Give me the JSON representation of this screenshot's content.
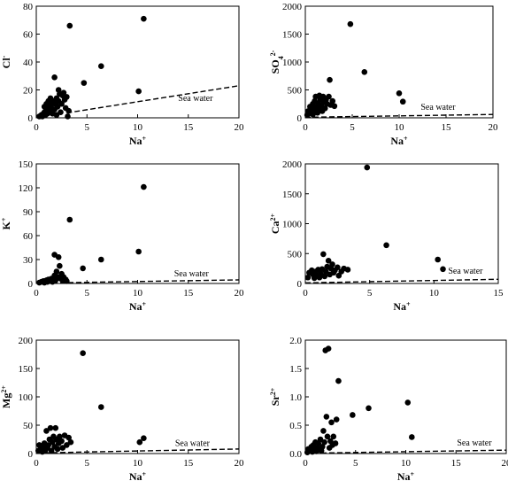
{
  "chart_data": [
    {
      "type": "scatter",
      "xlabel": "Na",
      "xlabel_sup": "+",
      "ylabel": "Cl",
      "ylabel_sup": "-",
      "xlim": [
        0,
        20
      ],
      "ylim": [
        0,
        80
      ],
      "xticks": [
        0,
        5,
        10,
        15,
        20
      ],
      "yticks": [
        0,
        20,
        40,
        60,
        80
      ],
      "ytick_labels": [
        "0",
        "20",
        "40",
        "60",
        "80"
      ],
      "annotation": "Sea water",
      "annotation_at": [
        14,
        12
      ],
      "seawater_line": [
        [
          3,
          3.5
        ],
        [
          20,
          23
        ]
      ],
      "points": [
        [
          0.3,
          1
        ],
        [
          0.5,
          2
        ],
        [
          0.6,
          1
        ],
        [
          0.7,
          3
        ],
        [
          0.8,
          4
        ],
        [
          0.8,
          8
        ],
        [
          0.9,
          2
        ],
        [
          1.0,
          6
        ],
        [
          1.0,
          10
        ],
        [
          1.1,
          3
        ],
        [
          1.2,
          8
        ],
        [
          1.2,
          12
        ],
        [
          1.3,
          5
        ],
        [
          1.4,
          14
        ],
        [
          1.5,
          10
        ],
        [
          1.5,
          7
        ],
        [
          1.6,
          3
        ],
        [
          1.7,
          12
        ],
        [
          1.8,
          29
        ],
        [
          1.8,
          6
        ],
        [
          1.9,
          10
        ],
        [
          2.0,
          14
        ],
        [
          2.0,
          2
        ],
        [
          2.1,
          8
        ],
        [
          2.2,
          20
        ],
        [
          2.2,
          12
        ],
        [
          2.3,
          17
        ],
        [
          2.4,
          4
        ],
        [
          2.5,
          10
        ],
        [
          2.6,
          16
        ],
        [
          2.7,
          18
        ],
        [
          2.8,
          13
        ],
        [
          2.9,
          7
        ],
        [
          3.0,
          15
        ],
        [
          3.1,
          1
        ],
        [
          3.2,
          5
        ],
        [
          3.3,
          66
        ],
        [
          4.7,
          25
        ],
        [
          6.4,
          37
        ],
        [
          10.1,
          19
        ],
        [
          10.6,
          71
        ]
      ]
    },
    {
      "type": "scatter",
      "xlabel": "Na",
      "xlabel_sup": "+",
      "ylabel": "SO",
      "ylabel_sub": "4",
      "ylabel_sup": "2-",
      "xlim": [
        0,
        20
      ],
      "ylim": [
        0,
        2000
      ],
      "xticks": [
        0,
        5,
        10,
        15,
        20
      ],
      "yticks": [
        0,
        500,
        1000,
        1500,
        2000
      ],
      "ytick_labels": [
        "0",
        "500",
        "1000",
        "1500",
        "2000"
      ],
      "annotation": "Sea water",
      "annotation_at": [
        12.3,
        140
      ],
      "seawater_line": [
        [
          0,
          10
        ],
        [
          20,
          60
        ]
      ],
      "points": [
        [
          0.2,
          50
        ],
        [
          0.3,
          120
        ],
        [
          0.4,
          80
        ],
        [
          0.5,
          200
        ],
        [
          0.6,
          150
        ],
        [
          0.7,
          100
        ],
        [
          0.8,
          250
        ],
        [
          0.8,
          60
        ],
        [
          0.9,
          180
        ],
        [
          1.0,
          300
        ],
        [
          1.0,
          120
        ],
        [
          1.1,
          380
        ],
        [
          1.2,
          200
        ],
        [
          1.3,
          90
        ],
        [
          1.4,
          260
        ],
        [
          1.5,
          400
        ],
        [
          1.5,
          150
        ],
        [
          1.6,
          330
        ],
        [
          1.7,
          220
        ],
        [
          1.8,
          120
        ],
        [
          1.9,
          380
        ],
        [
          2.0,
          280
        ],
        [
          2.1,
          170
        ],
        [
          2.2,
          320
        ],
        [
          2.3,
          250
        ],
        [
          2.5,
          380
        ],
        [
          2.6,
          680
        ],
        [
          2.7,
          230
        ],
        [
          2.9,
          300
        ],
        [
          3.1,
          210
        ],
        [
          4.8,
          1680
        ],
        [
          6.3,
          820
        ],
        [
          10.0,
          440
        ],
        [
          10.4,
          290
        ]
      ]
    },
    {
      "type": "scatter",
      "xlabel": "Na",
      "xlabel_sup": "+",
      "ylabel": "K",
      "ylabel_sup": "+",
      "xlim": [
        0,
        20
      ],
      "ylim": [
        0,
        150
      ],
      "xticks": [
        0,
        5,
        10,
        15,
        20
      ],
      "yticks": [
        0,
        30,
        60,
        90,
        120,
        150
      ],
      "ytick_labels": [
        "0",
        "30",
        "60",
        "90",
        "120",
        "150"
      ],
      "annotation": "Sea water",
      "annotation_at": [
        13.6,
        9
      ],
      "seawater_line": [
        [
          0,
          0.4
        ],
        [
          20,
          4.5
        ]
      ],
      "points": [
        [
          0.3,
          1
        ],
        [
          0.5,
          2
        ],
        [
          0.7,
          3
        ],
        [
          0.8,
          1
        ],
        [
          1.0,
          4
        ],
        [
          1.1,
          2
        ],
        [
          1.2,
          5
        ],
        [
          1.4,
          3
        ],
        [
          1.5,
          6
        ],
        [
          1.6,
          2
        ],
        [
          1.7,
          5
        ],
        [
          1.8,
          10
        ],
        [
          1.8,
          36
        ],
        [
          1.9,
          4
        ],
        [
          2.0,
          15
        ],
        [
          2.1,
          8
        ],
        [
          2.2,
          33
        ],
        [
          2.3,
          22
        ],
        [
          2.4,
          6
        ],
        [
          2.5,
          12
        ],
        [
          2.6,
          4
        ],
        [
          2.7,
          8
        ],
        [
          2.9,
          5
        ],
        [
          3.0,
          3
        ],
        [
          3.3,
          80
        ],
        [
          4.6,
          19
        ],
        [
          6.4,
          30
        ],
        [
          10.1,
          40
        ],
        [
          10.6,
          121
        ]
      ]
    },
    {
      "type": "scatter",
      "xlabel": "Na",
      "xlabel_sup": "+",
      "ylabel": "Ca",
      "ylabel_sup": "2+",
      "xlim": [
        0,
        15
      ],
      "ylim": [
        0,
        2000
      ],
      "xticks": [
        0,
        5,
        10,
        15
      ],
      "yticks": [
        0,
        500,
        1000,
        1500,
        2000
      ],
      "ytick_labels": [
        "0",
        "500",
        "1000",
        "1500",
        "2000"
      ],
      "annotation": "Sea water",
      "annotation_at": [
        11.1,
        160
      ],
      "seawater_line": [
        [
          0,
          10
        ],
        [
          15,
          70
        ]
      ],
      "points": [
        [
          0.2,
          100
        ],
        [
          0.3,
          180
        ],
        [
          0.5,
          220
        ],
        [
          0.6,
          150
        ],
        [
          0.7,
          90
        ],
        [
          0.8,
          200
        ],
        [
          0.9,
          130
        ],
        [
          1.0,
          230
        ],
        [
          1.1,
          100
        ],
        [
          1.2,
          160
        ],
        [
          1.3,
          240
        ],
        [
          1.4,
          490
        ],
        [
          1.5,
          120
        ],
        [
          1.6,
          200
        ],
        [
          1.7,
          280
        ],
        [
          1.8,
          380
        ],
        [
          1.9,
          150
        ],
        [
          2.0,
          250
        ],
        [
          2.1,
          320
        ],
        [
          2.2,
          180
        ],
        [
          2.3,
          220
        ],
        [
          2.5,
          270
        ],
        [
          2.6,
          130
        ],
        [
          2.8,
          200
        ],
        [
          3.0,
          250
        ],
        [
          3.3,
          230
        ],
        [
          4.8,
          1940
        ],
        [
          6.3,
          640
        ],
        [
          10.3,
          400
        ],
        [
          10.7,
          240
        ]
      ]
    },
    {
      "type": "scatter",
      "xlabel": "Na",
      "xlabel_sup": "+",
      "ylabel": "Mg",
      "ylabel_sup": "2+",
      "xlim": [
        0,
        20
      ],
      "ylim": [
        0,
        200
      ],
      "xticks": [
        0,
        5,
        10,
        15,
        20
      ],
      "yticks": [
        0,
        50,
        100,
        150,
        200
      ],
      "ytick_labels": [
        "0",
        "50",
        "100",
        "150",
        "200"
      ],
      "annotation": "Sea water",
      "annotation_at": [
        13.7,
        13
      ],
      "seawater_line": [
        [
          0,
          1
        ],
        [
          20,
          8
        ]
      ],
      "points": [
        [
          0.2,
          5
        ],
        [
          0.3,
          15
        ],
        [
          0.5,
          8
        ],
        [
          0.6,
          3
        ],
        [
          0.7,
          12
        ],
        [
          0.8,
          18
        ],
        [
          0.9,
          6
        ],
        [
          1.0,
          40
        ],
        [
          1.1,
          10
        ],
        [
          1.2,
          15
        ],
        [
          1.3,
          25
        ],
        [
          1.4,
          45
        ],
        [
          1.5,
          5
        ],
        [
          1.6,
          20
        ],
        [
          1.7,
          30
        ],
        [
          1.8,
          12
        ],
        [
          1.9,
          45
        ],
        [
          2.0,
          25
        ],
        [
          2.1,
          8
        ],
        [
          2.2,
          18
        ],
        [
          2.3,
          30
        ],
        [
          2.5,
          22
        ],
        [
          2.6,
          10
        ],
        [
          2.8,
          32
        ],
        [
          3.0,
          15
        ],
        [
          3.2,
          28
        ],
        [
          3.4,
          20
        ],
        [
          4.6,
          177
        ],
        [
          6.4,
          82
        ],
        [
          10.2,
          20
        ],
        [
          10.6,
          27
        ]
      ]
    },
    {
      "type": "scatter",
      "xlabel": "Na",
      "xlabel_sup": "+",
      "ylabel": "Sr",
      "ylabel_sup": "2+",
      "xlim": [
        0,
        20
      ],
      "ylim": [
        0,
        2.0
      ],
      "xticks": [
        0,
        5,
        10,
        15,
        20
      ],
      "yticks": [
        0,
        0.5,
        1.0,
        1.5,
        2.0
      ],
      "ytick_labels": [
        "0.0",
        "0.5",
        "1.0",
        "1.5",
        "2.0"
      ],
      "annotation": "Sea water",
      "annotation_at": [
        15.1,
        0.14
      ],
      "seawater_line": [
        [
          0,
          0.005
        ],
        [
          20,
          0.06
        ]
      ],
      "points": [
        [
          0.2,
          0.02
        ],
        [
          0.3,
          0.08
        ],
        [
          0.5,
          0.05
        ],
        [
          0.6,
          0.12
        ],
        [
          0.7,
          0.03
        ],
        [
          0.8,
          0.15
        ],
        [
          0.9,
          0.06
        ],
        [
          1.0,
          0.2
        ],
        [
          1.1,
          0.04
        ],
        [
          1.2,
          0.1
        ],
        [
          1.3,
          0.18
        ],
        [
          1.4,
          0.08
        ],
        [
          1.5,
          0.25
        ],
        [
          1.6,
          0.05
        ],
        [
          1.7,
          0.12
        ],
        [
          1.8,
          0.4
        ],
        [
          1.9,
          0.2
        ],
        [
          2.0,
          1.82
        ],
        [
          2.1,
          0.65
        ],
        [
          2.2,
          0.3
        ],
        [
          2.3,
          1.85
        ],
        [
          2.4,
          0.1
        ],
        [
          2.5,
          0.22
        ],
        [
          2.6,
          0.55
        ],
        [
          2.7,
          0.15
        ],
        [
          2.8,
          0.3
        ],
        [
          3.0,
          0.18
        ],
        [
          3.1,
          0.6
        ],
        [
          3.3,
          1.28
        ],
        [
          4.7,
          0.68
        ],
        [
          6.3,
          0.8
        ],
        [
          10.2,
          0.9
        ],
        [
          10.6,
          0.29
        ]
      ]
    }
  ]
}
